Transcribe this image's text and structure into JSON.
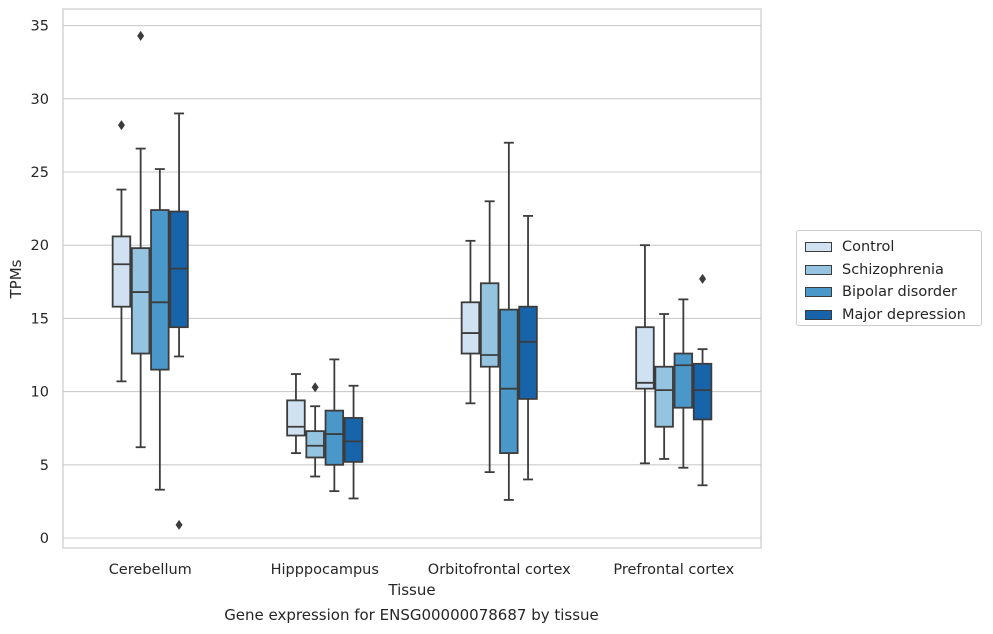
{
  "chart_data": {
    "type": "box",
    "xlabel": "Tissue",
    "ylabel": "TPMs",
    "caption": "Gene expression for ENSG00000078687 by tissue",
    "ylim": [
      -0.6,
      36
    ],
    "yticks": [
      0,
      5,
      10,
      15,
      20,
      25,
      30,
      35
    ],
    "grid": "horizontal",
    "legend_position": "right",
    "categories": [
      "Cerebellum",
      "Hipppocampus",
      "Orbitofrontal cortex",
      "Prefrontal cortex"
    ],
    "series": [
      {
        "name": "Control",
        "color": "#d0e1f2",
        "boxes": [
          {
            "min": 10.7,
            "q1": 15.8,
            "median": 18.7,
            "q3": 20.6,
            "max": 23.8,
            "outliers": [
              28.2
            ]
          },
          {
            "min": 5.8,
            "q1": 7.0,
            "median": 7.6,
            "q3": 9.4,
            "max": 11.2,
            "outliers": []
          },
          {
            "min": 9.2,
            "q1": 12.6,
            "median": 14.0,
            "q3": 16.1,
            "max": 20.3,
            "outliers": []
          },
          {
            "min": 5.1,
            "q1": 10.2,
            "median": 10.6,
            "q3": 14.4,
            "max": 20.0,
            "outliers": []
          }
        ]
      },
      {
        "name": "Schizophrenia",
        "color": "#94c4df",
        "boxes": [
          {
            "min": 6.2,
            "q1": 12.6,
            "median": 16.8,
            "q3": 19.8,
            "max": 26.6,
            "outliers": [
              34.3
            ]
          },
          {
            "min": 4.2,
            "q1": 5.5,
            "median": 6.3,
            "q3": 7.3,
            "max": 9.0,
            "outliers": [
              10.3
            ]
          },
          {
            "min": 4.5,
            "q1": 11.7,
            "median": 12.5,
            "q3": 17.4,
            "max": 23.0,
            "outliers": []
          },
          {
            "min": 5.4,
            "q1": 7.6,
            "median": 10.1,
            "q3": 11.7,
            "max": 15.3,
            "outliers": []
          }
        ]
      },
      {
        "name": "Bipolar disorder",
        "color": "#4a98c9",
        "boxes": [
          {
            "min": 3.3,
            "q1": 11.5,
            "median": 16.1,
            "q3": 22.4,
            "max": 25.2,
            "outliers": []
          },
          {
            "min": 3.2,
            "q1": 5.0,
            "median": 7.1,
            "q3": 8.7,
            "max": 12.2,
            "outliers": []
          },
          {
            "min": 2.6,
            "q1": 5.8,
            "median": 10.2,
            "q3": 15.6,
            "max": 27.0,
            "outliers": []
          },
          {
            "min": 4.8,
            "q1": 8.9,
            "median": 11.8,
            "q3": 12.6,
            "max": 16.3,
            "outliers": []
          }
        ]
      },
      {
        "name": "Major depression",
        "color": "#1764ab",
        "boxes": [
          {
            "min": 12.4,
            "q1": 14.4,
            "median": 18.4,
            "q3": 22.3,
            "max": 29.0,
            "outliers": [
              0.9
            ]
          },
          {
            "min": 2.7,
            "q1": 5.2,
            "median": 6.6,
            "q3": 8.2,
            "max": 10.4,
            "outliers": []
          },
          {
            "min": 4.0,
            "q1": 9.5,
            "median": 13.4,
            "q3": 15.8,
            "max": 22.0,
            "outliers": []
          },
          {
            "min": 3.6,
            "q1": 8.1,
            "median": 10.1,
            "q3": 11.9,
            "max": 12.9,
            "outliers": [
              17.7
            ]
          }
        ]
      }
    ]
  }
}
